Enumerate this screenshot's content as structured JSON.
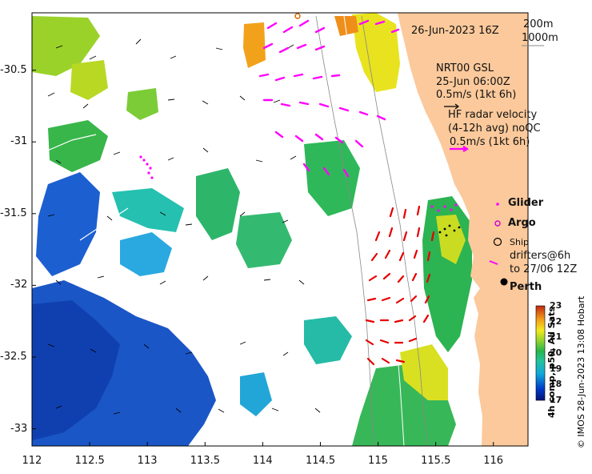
{
  "map": {
    "lon_range": [
      112,
      116.3
    ],
    "lat_range": [
      -33.12,
      -30.1
    ],
    "lon_ticks": [
      "112",
      "112.5",
      "113",
      "113.5",
      "114",
      "114.5",
      "115",
      "115.5",
      "116"
    ],
    "lat_ticks": [
      "-30.5",
      "-31",
      "-31.5",
      "-32",
      "-32.5",
      "-33"
    ],
    "colors": {
      "land": "#fbc99b",
      "radar_arrow": "#e60000",
      "current_arrow": "#ff00ff",
      "glider": "#ff00ff",
      "argo": "#d400d4"
    }
  },
  "annotations": {
    "timestamp": "26-Jun-2023 16Z",
    "contour_200": "200m",
    "contour_1000": "1000m",
    "nrt_title": "NRT00 GSL",
    "nrt_time": "25-Jun 06:00Z",
    "nrt_scale": "0.5m/s (1kt 6h)",
    "hf_line1": "HF radar velocity",
    "hf_line2": "(4-12h avg) noQC",
    "hf_scale": "0.5m/s (1kt 6h)"
  },
  "legend": {
    "glider": "Glider",
    "argo": "Argo",
    "ship": "Ship",
    "drifters_line1": "drifters@6h",
    "drifters_line2": "to 27/06 12Z",
    "city": "Perth"
  },
  "colorbar": {
    "ticks": [
      "23",
      "22",
      "21",
      "20",
      "19",
      "18",
      "17"
    ],
    "label": "4h comp, p50, All Sats",
    "min": 17,
    "max": 23
  },
  "credit": "© IMOS 28-Jun-2023 13:08 Hobart"
}
